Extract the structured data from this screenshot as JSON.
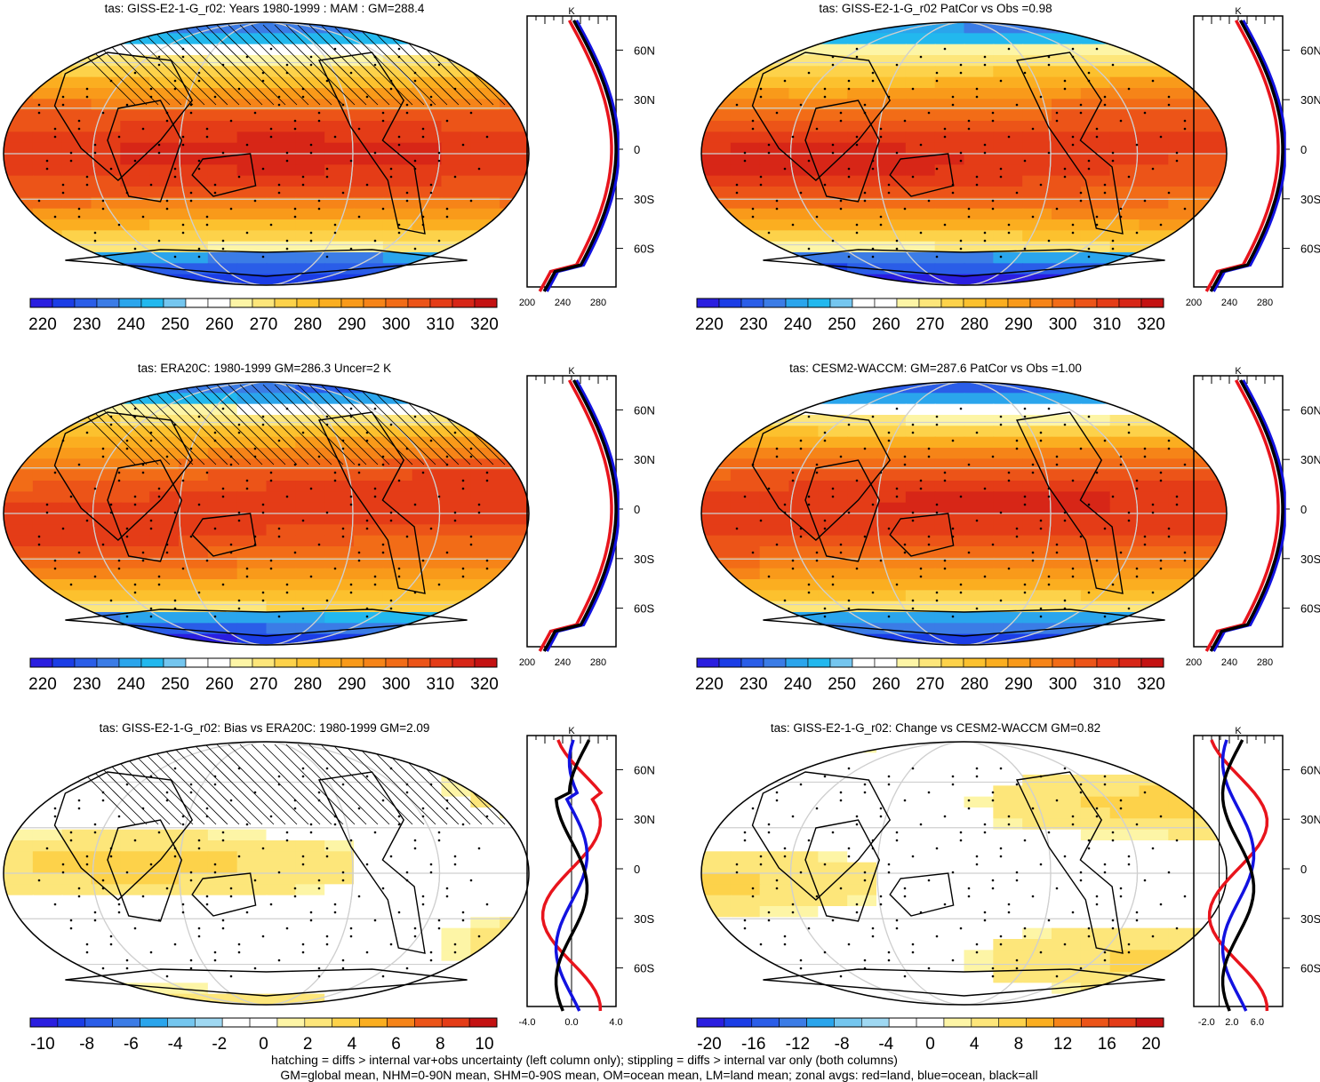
{
  "chart_data": [
    {
      "type": "heatmap",
      "title": "tas: GISS-E2-1-G_r02: Years 1980-1999 : MAM : GM=288.4",
      "colorbar_ticks": [
        "220",
        "230",
        "240",
        "250",
        "260",
        "270",
        "280",
        "290",
        "300",
        "310",
        "320"
      ],
      "colorbar_min": 215,
      "colorbar_max": 325,
      "kind": "abs",
      "zonal": {
        "xlim": [
          200,
          300
        ],
        "xticks": [
          "200",
          "240",
          "280"
        ],
        "unit": "K",
        "lat_ticks": [
          "60N",
          "30N",
          "0",
          "30S",
          "60S"
        ]
      }
    },
    {
      "type": "heatmap",
      "title": "tas: GISS-E2-1-G_r02 PatCor vs Obs =0.98",
      "colorbar_ticks": [
        "220",
        "230",
        "240",
        "250",
        "260",
        "270",
        "280",
        "290",
        "300",
        "310",
        "320"
      ],
      "colorbar_min": 215,
      "colorbar_max": 325,
      "kind": "abs",
      "zonal": {
        "xlim": [
          200,
          300
        ],
        "xticks": [
          "200",
          "240",
          "280"
        ],
        "unit": "K",
        "lat_ticks": [
          "60N",
          "30N",
          "0",
          "30S",
          "60S"
        ]
      }
    },
    {
      "type": "heatmap",
      "title": "tas: ERA20C: 1980-1999 GM=286.3 Uncer=2 K",
      "colorbar_ticks": [
        "220",
        "230",
        "240",
        "250",
        "260",
        "270",
        "280",
        "290",
        "300",
        "310",
        "320"
      ],
      "colorbar_min": 215,
      "colorbar_max": 325,
      "kind": "abs",
      "zonal": {
        "xlim": [
          200,
          300
        ],
        "xticks": [
          "200",
          "240",
          "280"
        ],
        "unit": "K",
        "lat_ticks": [
          "60N",
          "30N",
          "0",
          "30S",
          "60S"
        ]
      }
    },
    {
      "type": "heatmap",
      "title": "tas: CESM2-WACCM: GM=287.6 PatCor vs Obs =1.00",
      "colorbar_ticks": [
        "220",
        "230",
        "240",
        "250",
        "260",
        "270",
        "280",
        "290",
        "300",
        "310",
        "320"
      ],
      "colorbar_min": 215,
      "colorbar_max": 325,
      "kind": "abs",
      "zonal": {
        "xlim": [
          200,
          300
        ],
        "xticks": [
          "200",
          "240",
          "280"
        ],
        "unit": "K",
        "lat_ticks": [
          "60N",
          "30N",
          "0",
          "30S",
          "60S"
        ]
      }
    },
    {
      "type": "heatmap",
      "title": "tas: GISS-E2-1-G_r02: Bias vs ERA20C: 1980-1999 GM=2.09",
      "colorbar_ticks": [
        "-10",
        "-8",
        "-6",
        "-4",
        "-2",
        "0",
        "2",
        "4",
        "6",
        "8",
        "10"
      ],
      "colorbar_min": -11,
      "colorbar_max": 11,
      "kind": "diff",
      "zonal": {
        "xlim": [
          -4,
          4
        ],
        "xticks": [
          "-4.0",
          "0.0",
          "4.0"
        ],
        "unit": "K",
        "lat_ticks": [
          "60N",
          "30N",
          "0",
          "30S",
          "60S"
        ]
      }
    },
    {
      "type": "heatmap",
      "title": "tas: GISS-E2-1-G_r02: Change vs CESM2-WACCM GM=0.82",
      "colorbar_ticks": [
        "-20",
        "-16",
        "-12",
        "-8",
        "-4",
        "0",
        "4",
        "8",
        "12",
        "16",
        "20"
      ],
      "colorbar_min": -22,
      "colorbar_max": 22,
      "kind": "diff",
      "zonal": {
        "xlim": [
          -4,
          10
        ],
        "xticks": [
          "-2.0",
          "2.0",
          "6.0"
        ],
        "unit": "K",
        "lat_ticks": [
          "60N",
          "30N",
          "0",
          "30S",
          "60S"
        ]
      }
    }
  ],
  "colors": {
    "zonal_land": "#e8141c",
    "zonal_ocean": "#1212e0",
    "zonal_all": "#000000",
    "abs_scale": [
      "#2a1ee0",
      "#1b3de6",
      "#2a5de8",
      "#3b7ce6",
      "#2aa5ec",
      "#22b8ee",
      "#74c6ef",
      "#ffffff",
      "#ffffff",
      "#fdf5a6",
      "#fde67a",
      "#fdd24a",
      "#fcc12e",
      "#fbae20",
      "#f99a1a",
      "#f68418",
      "#f26c17",
      "#ec5418",
      "#e43c17",
      "#d72617",
      "#c41212"
    ],
    "diff_scale": [
      "#2a1ee0",
      "#1b3de6",
      "#2a5de8",
      "#3b7ce6",
      "#2aa5ec",
      "#74c6ef",
      "#9fd8f2",
      "#ffffff",
      "#ffffff",
      "#fdf5a6",
      "#fde67a",
      "#fdd24a",
      "#fbae20",
      "#f68418",
      "#ec5418",
      "#e43c17",
      "#c41212"
    ]
  },
  "footnotes": {
    "line1": "hatching = diffs > internal var+obs uncertainty (left column only); stippling = diffs > internal var only (both columns)",
    "line2": "GM=global mean, NHM=0-90N mean, SHM=0-90S mean, OM=ocean mean, LM=land mean; zonal avgs: red=land, blue=ocean, black=all"
  }
}
